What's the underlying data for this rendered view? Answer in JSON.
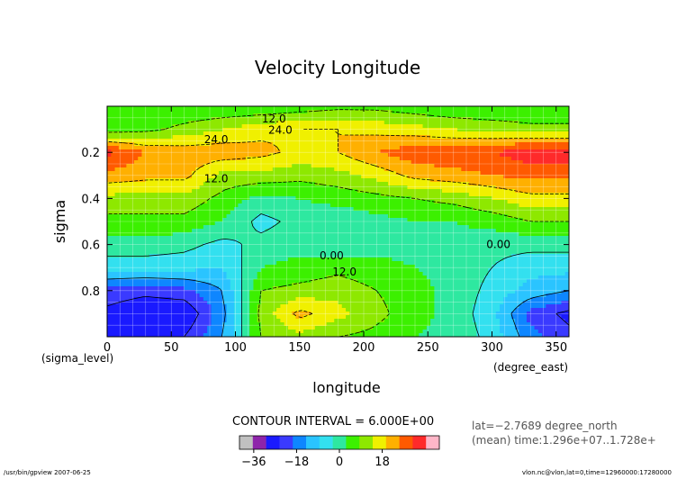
{
  "chart_data": {
    "type": "heatmap",
    "title": "Velocity Longitude",
    "xlabel": "longitude",
    "ylabel": "sigma",
    "x_units": "(degree_east)",
    "y_units": "(sigma_level)",
    "xlim": [
      0,
      360
    ],
    "ylim": [
      1.0,
      0.0
    ],
    "xticks": [
      0,
      50,
      100,
      150,
      200,
      250,
      300,
      350
    ],
    "yticks": [
      0.2,
      0.4,
      0.6,
      0.8
    ],
    "grid": true,
    "contour_interval_text": "CONTOUR INTERVAL = 6.000E+00",
    "contour_labels": [
      {
        "text": "12.0",
        "x": 130,
        "y": 0.07
      },
      {
        "text": "24.0",
        "x": 135,
        "y": 0.12
      },
      {
        "text": "24.0",
        "x": 85,
        "y": 0.16
      },
      {
        "text": "12.0",
        "x": 85,
        "y": 0.33
      },
      {
        "text": "0.00",
        "x": 175,
        "y": 0.665
      },
      {
        "text": "12.0",
        "x": 185,
        "y": 0.735
      },
      {
        "text": "0.00",
        "x": 305,
        "y": 0.615
      }
    ],
    "x_grid": [
      0,
      30,
      60,
      90,
      120,
      150,
      180,
      210,
      240,
      270,
      300,
      330,
      360
    ],
    "y_grid": [
      0.0,
      0.1,
      0.2,
      0.3,
      0.4,
      0.5,
      0.6,
      0.7,
      0.8,
      0.9,
      1.0
    ],
    "values": [
      [
        6,
        6,
        6,
        6,
        6,
        8,
        10,
        10,
        8,
        6,
        6,
        6,
        6
      ],
      [
        8,
        10,
        14,
        18,
        22,
        24,
        24,
        22,
        20,
        18,
        16,
        14,
        14
      ],
      [
        38,
        30,
        28,
        28,
        26,
        22,
        24,
        30,
        34,
        34,
        36,
        40,
        40
      ],
      [
        28,
        26,
        26,
        16,
        16,
        14,
        16,
        20,
        26,
        28,
        30,
        32,
        32
      ],
      [
        16,
        16,
        16,
        10,
        4,
        6,
        8,
        10,
        12,
        14,
        18,
        22,
        22
      ],
      [
        10,
        10,
        10,
        6,
        -2,
        2,
        2,
        4,
        6,
        6,
        8,
        12,
        12
      ],
      [
        4,
        4,
        2,
        -2,
        2,
        4,
        2,
        4,
        4,
        4,
        2,
        2,
        2
      ],
      [
        -4,
        -4,
        -4,
        -6,
        6,
        8,
        10,
        8,
        6,
        4,
        0,
        -4,
        -4
      ],
      [
        -20,
        -22,
        -20,
        -12,
        12,
        14,
        16,
        12,
        8,
        4,
        -2,
        -8,
        -12
      ],
      [
        -26,
        -30,
        -30,
        -14,
        14,
        26,
        20,
        14,
        8,
        4,
        -4,
        -20,
        -26
      ],
      [
        -24,
        -26,
        -24,
        -12,
        12,
        16,
        12,
        10,
        6,
        4,
        -2,
        -16,
        -22
      ]
    ],
    "colorbar": {
      "levels": [
        -42,
        -36,
        -30,
        -24,
        -18,
        -12,
        -6,
        0,
        6,
        12,
        18,
        24,
        30,
        36,
        42
      ],
      "colors": [
        "#c0c0c0",
        "#8e24aa",
        "#1a1aff",
        "#3a3aff",
        "#0e86ff",
        "#2ac4ff",
        "#33e0ef",
        "#2ee8a0",
        "#3cf000",
        "#8ee800",
        "#f0f000",
        "#ffb000",
        "#ff5a00",
        "#ff2a2a",
        "#ffb6c8"
      ],
      "tick_labels": [
        "−36",
        "−18",
        "0",
        "18"
      ],
      "tick_values": [
        -36,
        -18,
        0,
        18
      ]
    }
  },
  "footer": {
    "lat": "lat=−2.7689 degree_north",
    "time": "(mean) time:1.296e+07..1.728e+",
    "left": "/usr/bin/gpview  2007-06-25",
    "right": "vlon.nc@vlon,lat=0,time=12960000:17280000"
  }
}
